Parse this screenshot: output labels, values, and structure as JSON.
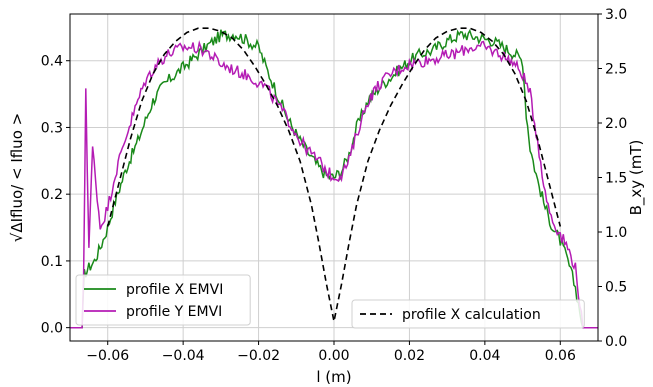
{
  "chart_data": {
    "type": "line",
    "xlabel": "l (m)",
    "ylabel_left": "√ΔIfluo/ < Ifluo >",
    "ylabel_right": "B_xy (mT)",
    "xlim": [
      -0.07,
      0.07
    ],
    "ylim_left": [
      -0.02,
      0.47
    ],
    "ylim_right": [
      0.0,
      3.0
    ],
    "x_ticks": [
      -0.06,
      -0.04,
      -0.02,
      0.0,
      0.02,
      0.04,
      0.06
    ],
    "x_tick_labels": [
      "−0.06",
      "−0.04",
      "−0.02",
      "0.00",
      "0.02",
      "0.04",
      "0.06"
    ],
    "y_left_ticks": [
      0.0,
      0.1,
      0.2,
      0.3,
      0.4
    ],
    "y_left_tick_labels": [
      "0.0",
      "0.1",
      "0.2",
      "0.3",
      "0.4"
    ],
    "y_right_ticks": [
      0.0,
      0.5,
      1.0,
      1.5,
      2.0,
      2.5,
      3.0
    ],
    "y_right_tick_labels": [
      "0.0",
      "0.5",
      "1.0",
      "1.5",
      "2.0",
      "2.5",
      "3.0"
    ],
    "grid": true,
    "legends": [
      {
        "placement": "lower-left",
        "entries": [
          "profile X EMVI",
          "profile Y EMVI"
        ]
      },
      {
        "placement": "lower-right",
        "entries": [
          "profile X calculation"
        ]
      }
    ],
    "series": [
      {
        "name": "profile X EMVI",
        "color": "#1a8a1a",
        "style": "solid",
        "axis": "left",
        "x": [
          -0.07,
          -0.0668,
          -0.0662,
          -0.065,
          -0.0635,
          -0.062,
          -0.06,
          -0.058,
          -0.055,
          -0.052,
          -0.05,
          -0.048,
          -0.045,
          -0.042,
          -0.04,
          -0.037,
          -0.034,
          -0.03,
          -0.026,
          -0.023,
          -0.02,
          -0.018,
          -0.015,
          -0.012,
          -0.009,
          -0.006,
          -0.004,
          -0.002,
          0.0,
          0.002,
          0.004,
          0.006,
          0.009,
          0.012,
          0.015,
          0.018,
          0.02,
          0.023,
          0.026,
          0.03,
          0.034,
          0.038,
          0.042,
          0.045,
          0.048,
          0.05,
          0.051,
          0.052,
          0.054,
          0.056,
          0.058,
          0.06,
          0.062,
          0.064,
          0.066,
          0.07
        ],
        "values": [
          0.0,
          0.0,
          0.08,
          0.09,
          0.1,
          0.12,
          0.15,
          0.19,
          0.24,
          0.28,
          0.31,
          0.34,
          0.365,
          0.38,
          0.39,
          0.405,
          0.42,
          0.438,
          0.44,
          0.43,
          0.42,
          0.39,
          0.35,
          0.31,
          0.28,
          0.255,
          0.24,
          0.228,
          0.225,
          0.235,
          0.26,
          0.3,
          0.34,
          0.36,
          0.375,
          0.39,
          0.4,
          0.41,
          0.415,
          0.43,
          0.44,
          0.435,
          0.43,
          0.42,
          0.41,
          0.4,
          0.32,
          0.27,
          0.22,
          0.18,
          0.15,
          0.13,
          0.1,
          0.06,
          0.0,
          0.0
        ]
      },
      {
        "name": "profile Y EMVI",
        "color": "#b41cb4",
        "style": "solid",
        "axis": "left",
        "x": [
          -0.07,
          -0.0668,
          -0.0664,
          -0.0658,
          -0.065,
          -0.064,
          -0.062,
          -0.06,
          -0.058,
          -0.055,
          -0.052,
          -0.05,
          -0.047,
          -0.044,
          -0.042,
          -0.04,
          -0.037,
          -0.034,
          -0.03,
          -0.026,
          -0.022,
          -0.018,
          -0.015,
          -0.012,
          -0.009,
          -0.006,
          -0.004,
          -0.002,
          0.0,
          0.002,
          0.004,
          0.006,
          0.009,
          0.012,
          0.015,
          0.018,
          0.02,
          0.024,
          0.028,
          0.032,
          0.036,
          0.04,
          0.044,
          0.047,
          0.05,
          0.052,
          0.054,
          0.056,
          0.058,
          0.06,
          0.062,
          0.064,
          0.066,
          0.07
        ],
        "values": [
          0.0,
          0.0,
          0.07,
          0.36,
          0.12,
          0.27,
          0.15,
          0.18,
          0.23,
          0.29,
          0.34,
          0.37,
          0.395,
          0.41,
          0.415,
          0.42,
          0.42,
          0.415,
          0.395,
          0.385,
          0.375,
          0.36,
          0.335,
          0.31,
          0.28,
          0.26,
          0.25,
          0.235,
          0.225,
          0.23,
          0.25,
          0.29,
          0.34,
          0.365,
          0.38,
          0.39,
          0.395,
          0.4,
          0.405,
          0.41,
          0.42,
          0.42,
          0.41,
          0.4,
          0.38,
          0.35,
          0.28,
          0.2,
          0.16,
          0.14,
          0.12,
          0.09,
          0.0,
          0.0
        ]
      },
      {
        "name": "profile X calculation",
        "color": "#000000",
        "style": "dashed",
        "axis": "right",
        "x": [
          -0.06,
          -0.057,
          -0.054,
          -0.051,
          -0.048,
          -0.045,
          -0.042,
          -0.039,
          -0.036,
          -0.033,
          -0.03,
          -0.027,
          -0.024,
          -0.021,
          -0.018,
          -0.015,
          -0.012,
          -0.009,
          -0.006,
          -0.004,
          -0.002,
          0.0,
          0.002,
          0.004,
          0.006,
          0.009,
          0.012,
          0.015,
          0.018,
          0.021,
          0.024,
          0.027,
          0.03,
          0.033,
          0.036,
          0.039,
          0.042,
          0.045,
          0.048,
          0.051,
          0.054,
          0.057,
          0.06
        ],
        "values": [
          1.05,
          1.45,
          1.85,
          2.2,
          2.45,
          2.63,
          2.75,
          2.83,
          2.87,
          2.87,
          2.84,
          2.78,
          2.67,
          2.52,
          2.35,
          2.16,
          1.93,
          1.65,
          1.25,
          0.9,
          0.52,
          0.18,
          0.52,
          0.9,
          1.25,
          1.65,
          1.93,
          2.16,
          2.35,
          2.52,
          2.67,
          2.78,
          2.84,
          2.87,
          2.87,
          2.83,
          2.75,
          2.63,
          2.45,
          2.2,
          1.85,
          1.45,
          1.05
        ]
      }
    ]
  }
}
